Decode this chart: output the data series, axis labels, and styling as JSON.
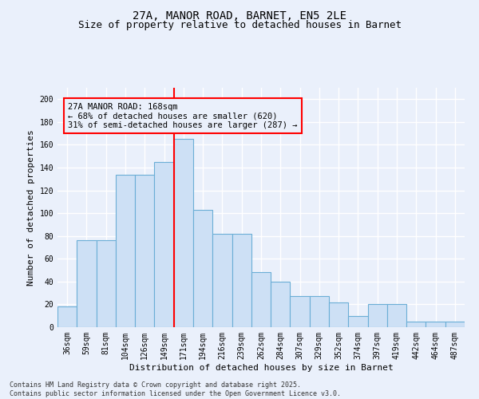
{
  "title1": "27A, MANOR ROAD, BARNET, EN5 2LE",
  "title2": "Size of property relative to detached houses in Barnet",
  "xlabel": "Distribution of detached houses by size in Barnet",
  "ylabel": "Number of detached properties",
  "categories": [
    "36sqm",
    "59sqm",
    "81sqm",
    "104sqm",
    "126sqm",
    "149sqm",
    "171sqm",
    "194sqm",
    "216sqm",
    "239sqm",
    "262sqm",
    "284sqm",
    "307sqm",
    "329sqm",
    "352sqm",
    "374sqm",
    "397sqm",
    "419sqm",
    "442sqm",
    "464sqm",
    "487sqm"
  ],
  "bar_heights": [
    18,
    76,
    76,
    134,
    134,
    145,
    165,
    103,
    82,
    82,
    48,
    40,
    27,
    27,
    22,
    10,
    20,
    20,
    5,
    5,
    5
  ],
  "bar_color": "#cde0f5",
  "bar_edge_color": "#6baed6",
  "vline_color": "red",
  "vline_x_index": 6,
  "annotation_text": "27A MANOR ROAD: 168sqm\n← 68% of detached houses are smaller (620)\n31% of semi-detached houses are larger (287) →",
  "annotation_box_color": "red",
  "ylim": [
    0,
    210
  ],
  "yticks": [
    0,
    20,
    40,
    60,
    80,
    100,
    120,
    140,
    160,
    180,
    200
  ],
  "background_color": "#eaf0fb",
  "footer": "Contains HM Land Registry data © Crown copyright and database right 2025.\nContains public sector information licensed under the Open Government Licence v3.0.",
  "grid_color": "#ffffff",
  "title1_fontsize": 10,
  "title2_fontsize": 9,
  "xlabel_fontsize": 8,
  "ylabel_fontsize": 8,
  "tick_fontsize": 7,
  "annotation_fontsize": 7.5,
  "footer_fontsize": 6
}
